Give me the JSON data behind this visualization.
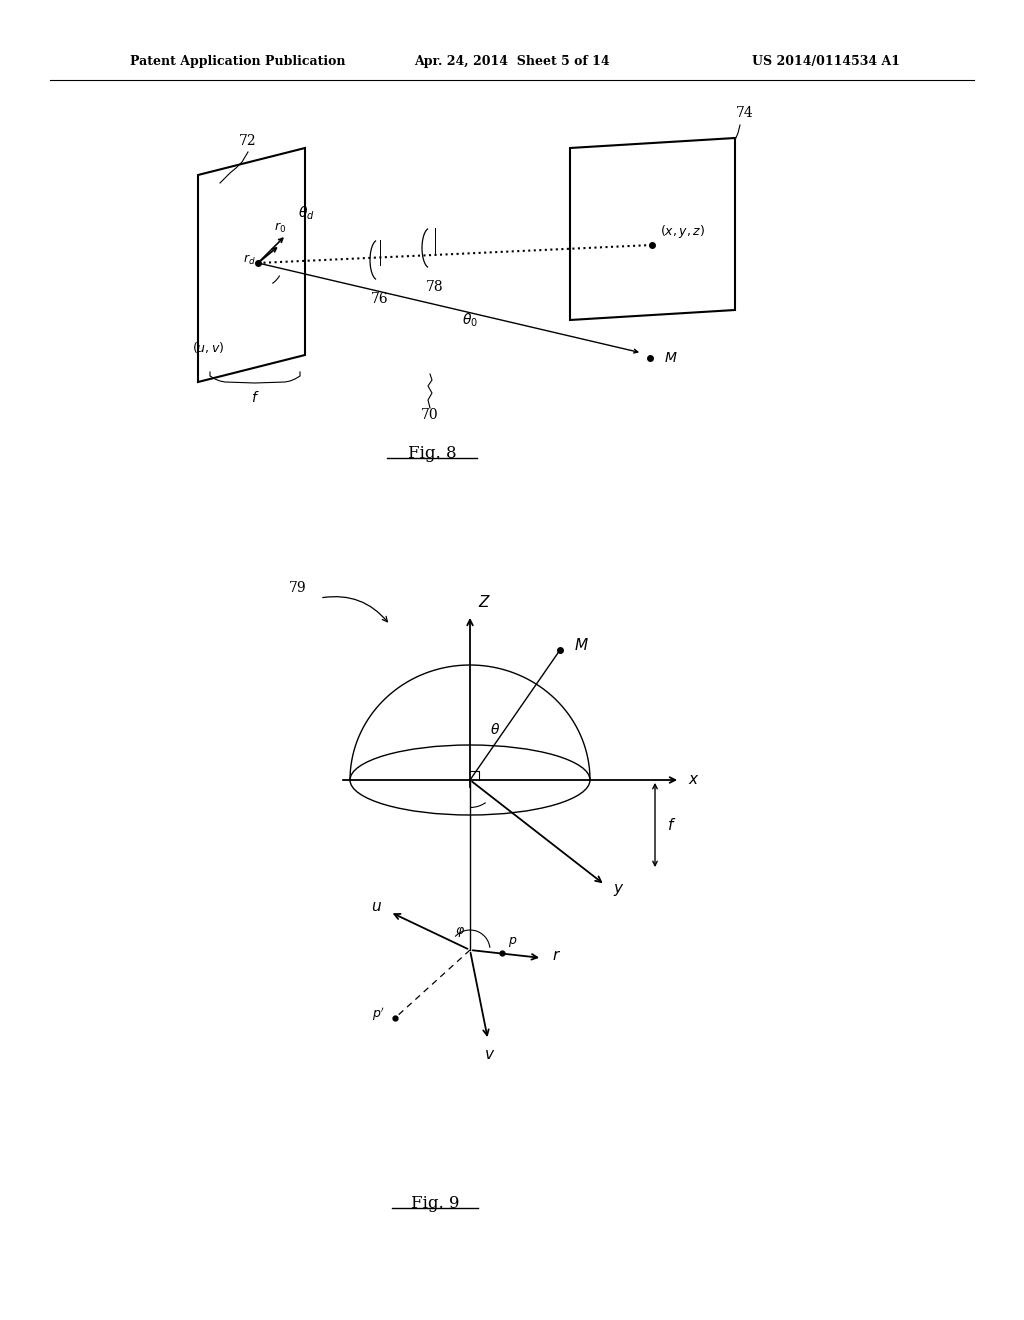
{
  "bg_color": "#ffffff",
  "text_color": "#000000",
  "header_left": "Patent Application Publication",
  "header_center": "Apr. 24, 2014  Sheet 5 of 14",
  "header_right": "US 2014/0114534 A1",
  "fig8_caption": "Fig. 8",
  "fig9_caption": "Fig. 9"
}
